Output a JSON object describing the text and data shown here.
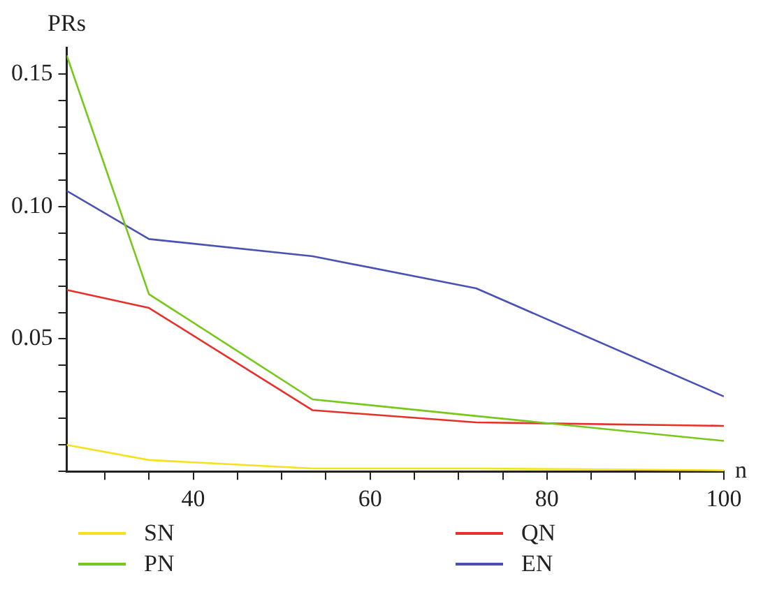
{
  "chart_data": {
    "type": "line",
    "xlabel": "n",
    "ylabel": "PRs",
    "x": [
      25.7,
      35,
      53.5,
      72,
      100
    ],
    "series": [
      {
        "name": "SN",
        "color": "#f5e11e",
        "values": [
          0.01,
          0.0043,
          0.0011,
          0.0011,
          0.0004
        ]
      },
      {
        "name": "PN",
        "color": "#76c81a",
        "values": [
          0.157,
          0.0669,
          0.0272,
          0.0209,
          0.0115
        ]
      },
      {
        "name": "QN",
        "color": "#e8302a",
        "values": [
          0.0685,
          0.0617,
          0.0231,
          0.0185,
          0.0172
        ]
      },
      {
        "name": "EN",
        "color": "#4a52b4",
        "values": [
          0.1059,
          0.0877,
          0.0812,
          0.0691,
          0.0283
        ]
      }
    ],
    "xlim": [
      25.7,
      100
    ],
    "xticks": [
      {
        "value": 30,
        "label": null
      },
      {
        "value": 35,
        "label": null
      },
      40,
      {
        "value": 45,
        "label": null
      },
      {
        "value": 50,
        "label": null
      },
      {
        "value": 55,
        "label": null
      },
      60,
      {
        "value": 65,
        "label": null
      },
      {
        "value": 70,
        "label": null
      },
      {
        "value": 75,
        "label": null
      },
      80,
      {
        "value": 85,
        "label": null
      },
      {
        "value": 90,
        "label": null
      },
      {
        "value": 95,
        "label": null
      },
      100
    ],
    "ylim": [
      0,
      0.16
    ],
    "yticks": [
      {
        "value": 0,
        "label": null
      },
      {
        "value": 0.01,
        "label": null
      },
      {
        "value": 0.02,
        "label": null
      },
      {
        "value": 0.03,
        "label": null
      },
      {
        "value": 0.04,
        "label": null
      },
      {
        "value": 0.05,
        "label": "0.05"
      },
      {
        "value": 0.06,
        "label": null
      },
      {
        "value": 0.07,
        "label": null
      },
      {
        "value": 0.08,
        "label": null
      },
      {
        "value": 0.09,
        "label": null
      },
      {
        "value": 0.1,
        "label": "0.10"
      },
      {
        "value": 0.11,
        "label": null
      },
      {
        "value": 0.12,
        "label": null
      },
      {
        "value": 0.13,
        "label": null
      },
      {
        "value": 0.14,
        "label": null
      },
      {
        "value": 0.15,
        "label": "0.15"
      }
    ],
    "grid": false,
    "legend": "bottom",
    "marker": "none",
    "line_style": "solid"
  }
}
